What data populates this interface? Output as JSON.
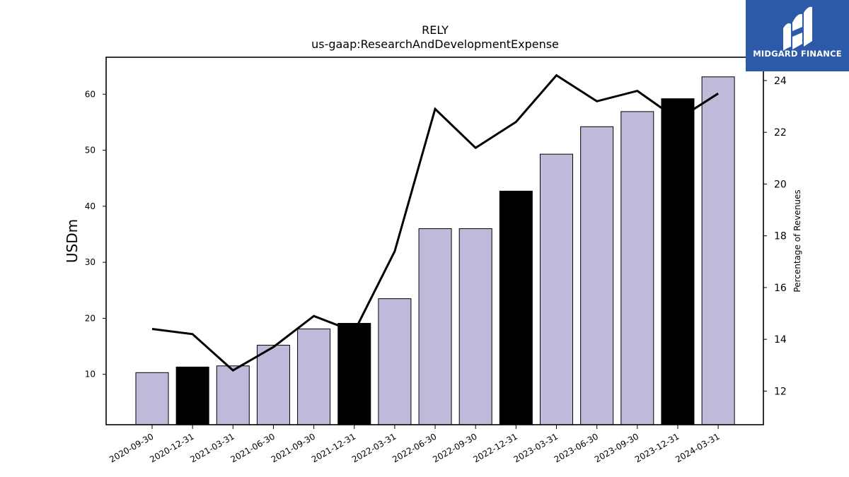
{
  "chart_data": {
    "type": "bar",
    "title": "RELY",
    "subtitle": "us-gaap:ResearchAndDevelopmentExpense",
    "ylabel": "USDm",
    "y2label": "Percentage of Revenues",
    "categories": [
      "2020-09-30",
      "2020-12-31",
      "2021-03-31",
      "2021-06-30",
      "2021-09-30",
      "2021-12-31",
      "2022-03-31",
      "2022-06-30",
      "2022-09-30",
      "2022-12-31",
      "2023-03-31",
      "2023-06-30",
      "2023-09-30",
      "2023-12-31",
      "2024-03-31"
    ],
    "series": [
      {
        "type": "bar",
        "values": [
          10.3,
          11.3,
          11.5,
          15.2,
          18.1,
          19.1,
          23.5,
          36.0,
          36.0,
          42.7,
          49.3,
          54.2,
          56.9,
          59.2,
          63.1
        ],
        "colors": [
          "#bebada",
          "#000000",
          "#bebada",
          "#bebada",
          "#bebada",
          "#000000",
          "#bebada",
          "#bebada",
          "#bebada",
          "#000000",
          "#bebada",
          "#bebada",
          "#bebada",
          "#000000",
          "#bebada"
        ],
        "axis": "left"
      },
      {
        "type": "line",
        "values": [
          14.4,
          14.2,
          12.8,
          13.7,
          14.9,
          14.3,
          17.4,
          22.9,
          21.4,
          22.4,
          24.2,
          23.2,
          23.6,
          22.5,
          23.5
        ],
        "color": "#000000",
        "axis": "right"
      }
    ],
    "ylim": [
      1.0,
      66.6
    ],
    "yticks": [
      10,
      20,
      30,
      40,
      50,
      60
    ],
    "y2lim": [
      10.7,
      24.9
    ],
    "y2ticks": [
      12,
      14,
      16,
      18,
      20,
      22,
      24
    ],
    "grid": false,
    "legend": "none"
  },
  "logo": {
    "text": "MIDGARD FINANCE",
    "background": "#2c5aa8"
  }
}
